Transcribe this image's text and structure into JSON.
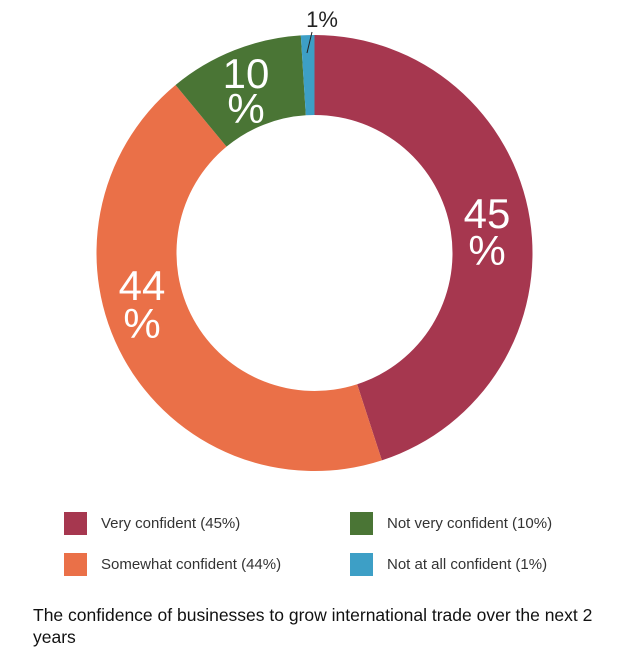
{
  "chart_data": {
    "type": "pie",
    "donut": true,
    "title": "The confidence of businesses to grow international trade over the next 2 years",
    "start": "top",
    "direction": "clockwise",
    "slices": [
      {
        "name": "Very confident (45%)",
        "value": 45,
        "label": "45",
        "label2": "%",
        "color": "#a6374f"
      },
      {
        "name": "Somewhat confident (44%)",
        "value": 44,
        "label": "44",
        "label2": "%",
        "color": "#ea7048"
      },
      {
        "name": "Not very confident (10%)",
        "value": 10,
        "label": "10",
        "label2": "%",
        "color": "#4a7535"
      },
      {
        "name": "Not at all confident (1%)",
        "value": 1,
        "label": "1%",
        "label2": "",
        "color": "#3d9fc6"
      }
    ],
    "legend_position": "bottom"
  }
}
